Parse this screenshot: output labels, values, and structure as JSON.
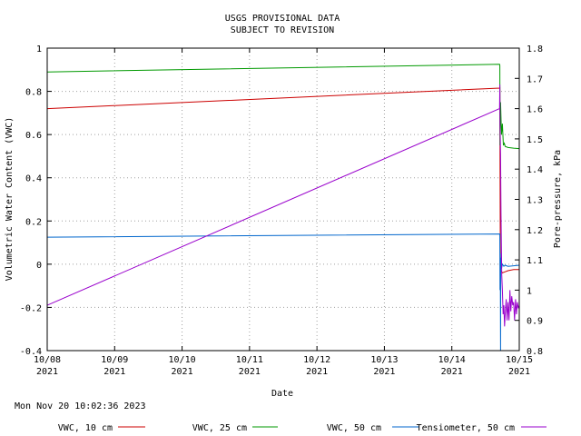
{
  "header": {
    "title_line1": "USGS PROVISIONAL DATA",
    "title_line2": "SUBJECT TO REVISION"
  },
  "footer": {
    "timestamp": "Mon Nov 20 10:02:36 2023"
  },
  "chart_data": {
    "type": "line",
    "xlabel": "Date",
    "ylabel": "Volumetric Water Content (VWC)",
    "y2label": "Pore-pressure, kPa",
    "xlim": [
      "2021-10-08",
      "2021-10-15"
    ],
    "ylim": [
      -0.4,
      1.0
    ],
    "y2lim": [
      0.8,
      1.8
    ],
    "grid": true,
    "legend_position": "bottom",
    "x_ticks": [
      {
        "date": "2021-10-08",
        "line1": "10/08",
        "line2": "2021"
      },
      {
        "date": "2021-10-09",
        "line1": "10/09",
        "line2": "2021"
      },
      {
        "date": "2021-10-10",
        "line1": "10/10",
        "line2": "2021"
      },
      {
        "date": "2021-10-11",
        "line1": "10/11",
        "line2": "2021"
      },
      {
        "date": "2021-10-12",
        "line1": "10/12",
        "line2": "2021"
      },
      {
        "date": "2021-10-13",
        "line1": "10/13",
        "line2": "2021"
      },
      {
        "date": "2021-10-14",
        "line1": "10/14",
        "line2": "2021"
      },
      {
        "date": "2021-10-15",
        "line1": "10/15",
        "line2": "2021"
      }
    ],
    "y_ticks": [
      "-0.4",
      "-0.2",
      "0",
      "0.2",
      "0.4",
      "0.6",
      "0.8",
      "1"
    ],
    "y2_ticks": [
      "0.8",
      "0.9",
      "1",
      "1.1",
      "1.2",
      "1.3",
      "1.4",
      "1.5",
      "1.6",
      "1.7",
      "1.8"
    ],
    "series": [
      {
        "name": "VWC, 10 cm",
        "color": "#cc0000",
        "axis": "left",
        "points": [
          [
            "2021-10-08 00:00",
            0.72
          ],
          [
            "2021-10-14 17:00",
            0.815
          ],
          [
            "2021-10-14 17:05",
            0.82
          ],
          [
            "2021-10-14 17:10",
            0.5
          ],
          [
            "2021-10-14 17:15",
            0.1
          ],
          [
            "2021-10-14 17:20",
            -0.05
          ],
          [
            "2021-10-14 17:25",
            -0.03
          ],
          [
            "2021-10-14 18:00",
            -0.04
          ],
          [
            "2021-10-14 19:00",
            -0.035
          ],
          [
            "2021-10-14 20:00",
            -0.03
          ],
          [
            "2021-10-14 22:00",
            -0.025
          ],
          [
            "2021-10-15 00:00",
            -0.025
          ]
        ]
      },
      {
        "name": "VWC, 25 cm",
        "color": "#009900",
        "axis": "left",
        "points": [
          [
            "2021-10-08 00:00",
            0.89
          ],
          [
            "2021-10-14 17:00",
            0.925
          ],
          [
            "2021-10-14 17:05",
            0.92
          ],
          [
            "2021-10-14 17:10",
            0.55
          ],
          [
            "2021-10-14 17:20",
            0.75
          ],
          [
            "2021-10-14 17:40",
            0.6
          ],
          [
            "2021-10-14 18:00",
            0.65
          ],
          [
            "2021-10-14 18:20",
            0.55
          ],
          [
            "2021-10-14 18:40",
            0.56
          ],
          [
            "2021-10-14 19:00",
            0.545
          ],
          [
            "2021-10-14 20:00",
            0.54
          ],
          [
            "2021-10-14 22:00",
            0.537
          ],
          [
            "2021-10-15 00:00",
            0.535
          ]
        ]
      },
      {
        "name": "VWC, 50 cm",
        "color": "#0066cc",
        "axis": "left",
        "points": [
          [
            "2021-10-08 00:00",
            0.125
          ],
          [
            "2021-10-14 17:00",
            0.14
          ],
          [
            "2021-10-14 17:05",
            0.14
          ],
          [
            "2021-10-14 17:10",
            -0.12
          ],
          [
            "2021-10-14 17:15",
            0.05
          ],
          [
            "2021-10-14 17:20",
            -0.4
          ],
          [
            "2021-10-14 17:25",
            0.03
          ],
          [
            "2021-10-14 17:40",
            -0.02
          ],
          [
            "2021-10-14 18:00",
            0.0
          ],
          [
            "2021-10-14 18:30",
            -0.01
          ],
          [
            "2021-10-14 19:00",
            -0.005
          ],
          [
            "2021-10-14 20:00",
            -0.01
          ],
          [
            "2021-10-15 00:00",
            -0.005
          ]
        ]
      },
      {
        "name": "Tensiometer, 50 cm",
        "color": "#9900cc",
        "axis": "right",
        "points": [
          [
            "2021-10-08 00:00",
            0.95
          ],
          [
            "2021-10-14 17:00",
            1.6
          ],
          [
            "2021-10-14 17:05",
            1.68
          ],
          [
            "2021-10-14 17:10",
            1.55
          ],
          [
            "2021-10-14 17:20",
            1.45
          ],
          [
            "2021-10-14 17:30",
            1.25
          ],
          [
            "2021-10-14 17:45",
            1.05
          ],
          [
            "2021-10-14 18:00",
            1.0
          ],
          [
            "2021-10-14 18:15",
            0.92
          ],
          [
            "2021-10-14 18:30",
            0.95
          ],
          [
            "2021-10-14 18:45",
            0.88
          ],
          [
            "2021-10-14 19:00",
            0.92
          ],
          [
            "2021-10-14 19:20",
            0.97
          ],
          [
            "2021-10-14 19:40",
            0.9
          ],
          [
            "2021-10-14 20:00",
            0.96
          ],
          [
            "2021-10-14 20:20",
            0.9
          ],
          [
            "2021-10-14 20:40",
            1.0
          ],
          [
            "2021-10-14 21:00",
            0.93
          ],
          [
            "2021-10-14 21:20",
            0.98
          ],
          [
            "2021-10-14 21:40",
            0.95
          ],
          [
            "2021-10-14 22:00",
            0.96
          ],
          [
            "2021-10-14 22:20",
            0.9
          ],
          [
            "2021-10-14 22:40",
            0.97
          ],
          [
            "2021-10-14 23:00",
            0.92
          ],
          [
            "2021-10-14 23:20",
            0.96
          ],
          [
            "2021-10-14 23:40",
            0.94
          ],
          [
            "2021-10-15 00:00",
            0.95
          ]
        ]
      }
    ]
  }
}
